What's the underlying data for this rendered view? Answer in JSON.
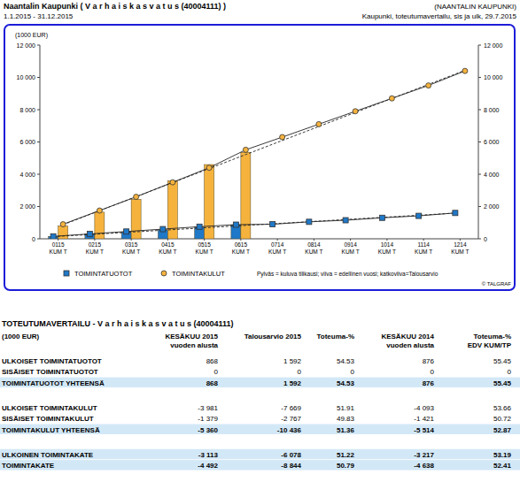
{
  "header": {
    "title": "Naantalin Kaupunki ( V a r h a i s k a s v a t u s (40004111) )",
    "period": "1.1.2015 - 31.12.2015",
    "org": "(NAANTALIN KAUPUNKI)",
    "report": "Kaupunki, toteutumavertailu, sis ja ulk, 29.7.2015"
  },
  "chart_data": {
    "type": "bar",
    "ylabel": "(1000 EUR)",
    "categories": [
      "0115 KUM T",
      "0215 KUM T",
      "0315 KUM T",
      "0415 KUM T",
      "0515 KUM T",
      "0615 KUM T",
      "0714 KUM T",
      "0814 KUM T",
      "0914 KUM T",
      "1014 KUM T",
      "1114 KUM T",
      "1214 KUM T"
    ],
    "series": [
      {
        "name": "TOIMINTATUOTOT",
        "color": "#1f78c8",
        "marker": "square",
        "values": [
          150,
          300,
          420,
          560,
          720,
          868,
          null,
          null,
          null,
          null,
          null,
          null
        ],
        "previous_year": [
          150,
          300,
          450,
          600,
          750,
          876,
          900,
          1050,
          1150,
          1300,
          1420,
          1600
        ],
        "budget": [
          133,
          265,
          398,
          531,
          663,
          796,
          929,
          1061,
          1194,
          1327,
          1459,
          1592
        ]
      },
      {
        "name": "TOIMINTAKULUT",
        "color": "#f5b33e",
        "marker": "circle",
        "values": [
          800,
          1650,
          2450,
          3600,
          4600,
          5360,
          null,
          null,
          null,
          null,
          null,
          null
        ],
        "previous_year": [
          900,
          1750,
          2600,
          3500,
          4400,
          5514,
          6300,
          7100,
          7900,
          8700,
          9500,
          10400
        ],
        "budget": [
          870,
          1739,
          2609,
          3479,
          4348,
          5218,
          6088,
          6957,
          7827,
          8697,
          9566,
          10436
        ]
      }
    ],
    "ylim": [
      0,
      12000
    ],
    "yticks": [
      0,
      {
        "value": 2000,
        "label": "2 000"
      },
      {
        "value": 4000,
        "label": "4 000"
      },
      {
        "value": 6000,
        "label": "6 000"
      },
      {
        "value": 8000,
        "label": "8 000"
      },
      {
        "value": 10000,
        "label": "10 000"
      },
      {
        "value": 12000,
        "label": "12 000"
      }
    ],
    "y2lim": [
      0,
      12000
    ],
    "y2ticks": [
      0,
      {
        "value": 2000,
        "label": "2 000"
      },
      {
        "value": 4000,
        "label": "4 000"
      },
      {
        "value": 6000,
        "label": "6 000"
      },
      {
        "value": 8000,
        "label": "8 000"
      },
      {
        "value": 10000,
        "label": "10 000"
      },
      {
        "value": 12000,
        "label": "12 000"
      }
    ],
    "grid": false,
    "legend": "bottom",
    "annotations": [
      "Pylväs = kuluva tilikausi; viiva = edellinen vuosi; katkoviiva=Talousarvio",
      "© TALGRAF"
    ]
  },
  "table": {
    "title": "TOTEUTUMAVERTAILU - V a r h a i s k a s v a t u s (40004111)",
    "columns": [
      [
        "(1000 EUR)"
      ],
      [
        "KESÄKUU 2015",
        "vuoden alusta"
      ],
      [
        "Talousarvio 2015"
      ],
      [
        "Toteuma-%"
      ],
      [
        "KESÄKUU 2014",
        "vuoden alusta"
      ],
      [
        "Toteuma-%",
        "EDV KUM/TP"
      ]
    ],
    "groups": [
      [
        {
          "cells": [
            "ULKOISET TOIMINTATUOTOT",
            "868",
            "1 592",
            "54.53",
            "876",
            "55.45"
          ],
          "total": false
        },
        {
          "cells": [
            "SISÄISET TOIMINTATUOTOT",
            "0",
            "0",
            "0",
            "0",
            "0"
          ],
          "total": false
        },
        {
          "cells": [
            "TOIMINTATUOTOT YHTEENSÄ",
            "868",
            "1 592",
            "54.53",
            "876",
            "55.45"
          ],
          "total": true
        }
      ],
      [
        {
          "cells": [
            "ULKOISET TOIMINTAKULUT",
            "-3 981",
            "-7 669",
            "51.91",
            "-4 093",
            "53.66"
          ],
          "total": false
        },
        {
          "cells": [
            "SISÄISET TOIMINTAKULUT",
            "-1 379",
            "-2 767",
            "49.83",
            "-1 421",
            "50.72"
          ],
          "total": false
        },
        {
          "cells": [
            "TOIMINTAKULUT YHTEENSÄ",
            "-5 360",
            "-10 436",
            "51.36",
            "-5 514",
            "52.87"
          ],
          "total": true
        }
      ],
      [
        {
          "cells": [
            "ULKOINEN TOIMINTAKATE",
            "-3 113",
            "-6 078",
            "51.22",
            "-3 217",
            "53.19"
          ],
          "total": true
        },
        {
          "cells": [
            "TOIMINTAKATE",
            "-4 492",
            "-8 844",
            "50.79",
            "-4 638",
            "52.41"
          ],
          "total": true
        }
      ]
    ]
  }
}
